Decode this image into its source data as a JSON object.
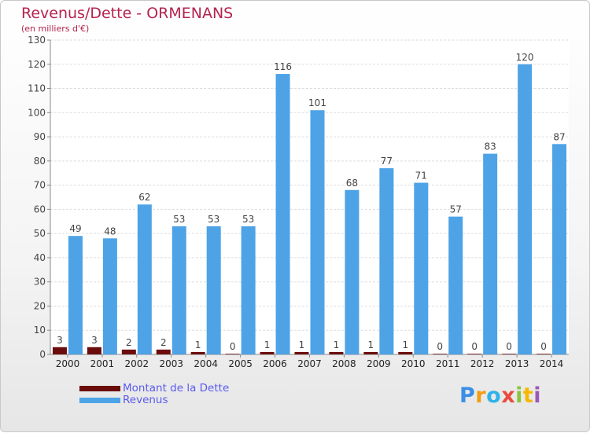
{
  "header": {
    "title": "Revenus/Dette - ORMENANS",
    "subtitle": "(en milliers d'€)"
  },
  "legend": {
    "debt_label": "Montant de la Dette",
    "revenue_label": "Revenus"
  },
  "logo": {
    "letters": [
      "P",
      "r",
      "o",
      "x",
      "i",
      "t",
      "i"
    ],
    "colors": [
      "#3a8ee6",
      "#f39c12",
      "#2fb3e8",
      "#e84c3d",
      "#8ac43f",
      "#f5b800",
      "#9b59b6"
    ]
  },
  "colors": {
    "debt": "#6b0c0c",
    "revenue": "#4da3e6",
    "title": "#b5234e",
    "legend_text": "#5a5aee"
  },
  "chart_data": {
    "type": "bar",
    "categories": [
      "2000",
      "2001",
      "2002",
      "2003",
      "2004",
      "2005",
      "2006",
      "2007",
      "2008",
      "2009",
      "2010",
      "2011",
      "2012",
      "2013",
      "2014"
    ],
    "series": [
      {
        "name": "Montant de la Dette",
        "values": [
          3,
          3,
          2,
          2,
          1,
          0,
          1,
          1,
          1,
          1,
          1,
          0,
          0,
          0,
          0
        ]
      },
      {
        "name": "Revenus",
        "values": [
          49,
          48,
          62,
          53,
          53,
          53,
          116,
          101,
          68,
          77,
          71,
          57,
          83,
          120,
          87
        ]
      }
    ],
    "y_ticks": [
      "0",
      "10",
      "20",
      "30",
      "40",
      "50",
      "60",
      "70",
      "80",
      "90",
      "100",
      "110",
      "120",
      "130"
    ],
    "ylim": [
      0,
      130
    ],
    "grid": true,
    "legend_position": "bottom-left"
  }
}
